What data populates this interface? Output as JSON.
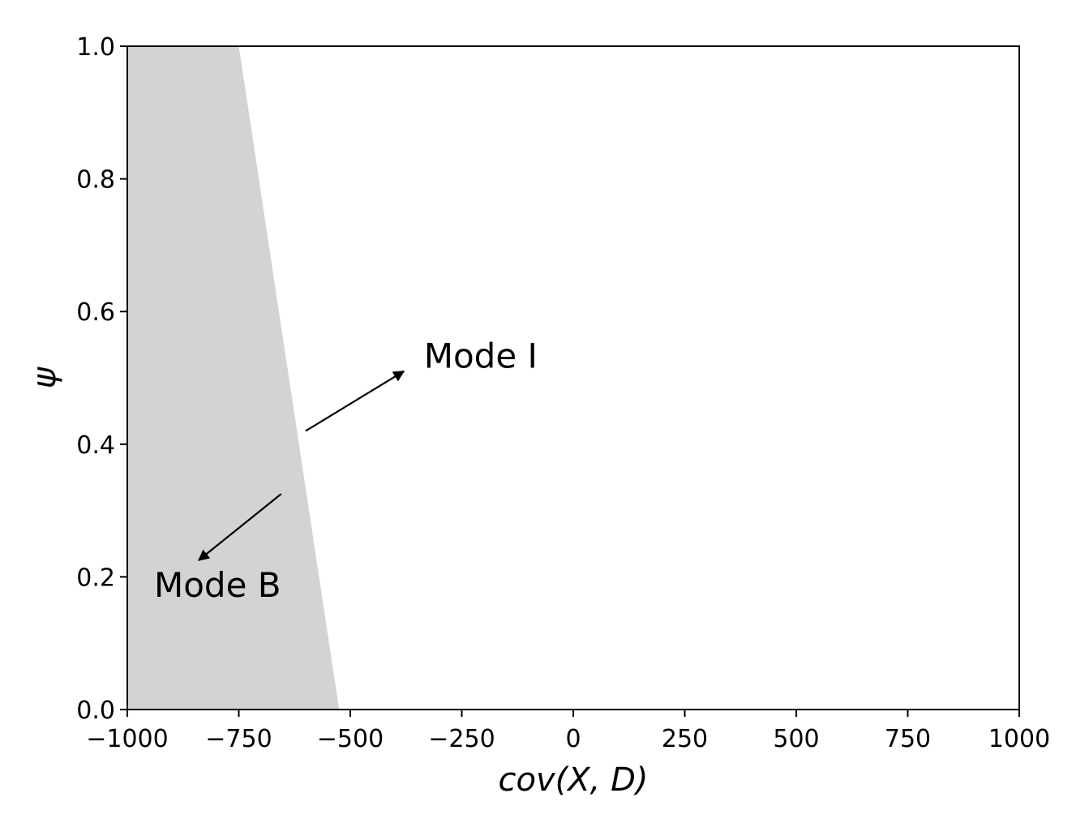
{
  "chart_data": {
    "type": "area",
    "xlabel": "cov(X, D)",
    "ylabel": "ψ",
    "xlim": [
      -1000,
      1000
    ],
    "ylim": [
      0,
      1
    ],
    "xticks": [
      -1000,
      -750,
      -500,
      -250,
      0,
      250,
      500,
      750,
      1000
    ],
    "xtick_labels": [
      "−1000",
      "−750",
      "−500",
      "−250",
      "0",
      "250",
      "500",
      "750",
      "1000"
    ],
    "yticks": [
      0.0,
      0.2,
      0.4,
      0.6,
      0.8,
      1.0
    ],
    "ytick_labels": [
      "0.0",
      "0.2",
      "0.4",
      "0.6",
      "0.8",
      "1.0"
    ],
    "region": {
      "name": "Mode B",
      "color": "#d3d3d3",
      "boundary": [
        {
          "x": -525,
          "y": 0.0
        },
        {
          "x": -750,
          "y": 1.0
        }
      ]
    },
    "annotations": [
      {
        "text": "Mode I",
        "arrow_from": {
          "x": -600,
          "y": 0.42
        },
        "arrow_to": {
          "x": -380,
          "y": 0.51
        },
        "text_at": {
          "x": -335,
          "y": 0.515
        }
      },
      {
        "text": "Mode B",
        "arrow_from": {
          "x": -655,
          "y": 0.325
        },
        "arrow_to": {
          "x": -840,
          "y": 0.225
        },
        "text_at": {
          "x": -940,
          "y": 0.17
        }
      }
    ],
    "grid": false,
    "colors": {
      "region": "#d3d3d3",
      "axes": "#000000"
    }
  }
}
